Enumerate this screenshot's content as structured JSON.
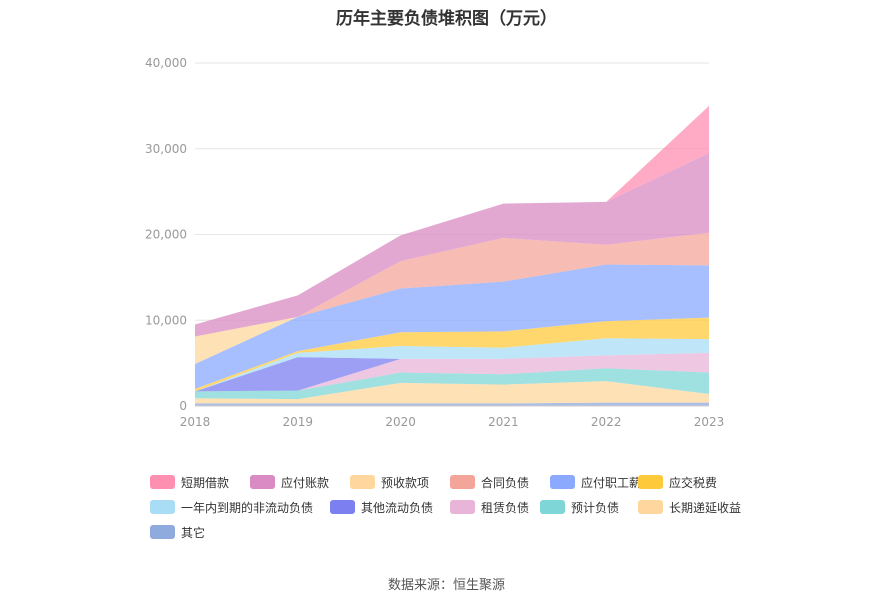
{
  "chart_data": {
    "type": "area",
    "stacked": true,
    "title": "历年主要负债堆积图（万元）",
    "x": [
      "2018",
      "2019",
      "2020",
      "2021",
      "2022",
      "2023"
    ],
    "ylim": [
      0,
      40000
    ],
    "yticks": [
      "0",
      "10,000",
      "20,000",
      "30,000",
      "40,000"
    ],
    "grid": true,
    "legend_position": "bottom",
    "series": [
      {
        "name": "其它",
        "color": "#8FAADC",
        "values": [
          300,
          300,
          300,
          300,
          400,
          400
        ]
      },
      {
        "name": "长期递延收益",
        "color": "#FFD79E",
        "values": [
          600,
          500,
          2400,
          2200,
          2500,
          1000
        ]
      },
      {
        "name": "预计负债",
        "color": "#7FD6D6",
        "values": [
          800,
          1000,
          1200,
          1200,
          1500,
          2500
        ]
      },
      {
        "name": "租赁负债",
        "color": "#E8B4D8",
        "values": [
          0,
          0,
          1600,
          1800,
          1500,
          2300
        ]
      },
      {
        "name": "其他流动负债",
        "color": "#7B7FEF",
        "values": [
          0,
          3900,
          0,
          0,
          0,
          0
        ]
      },
      {
        "name": "一年内到期的非流动负债",
        "color": "#A9DDF5",
        "values": [
          0,
          500,
          1500,
          1300,
          2000,
          1600
        ]
      },
      {
        "name": "应交税费",
        "color": "#FFC93C",
        "values": [
          300,
          200,
          1600,
          1900,
          2000,
          2500
        ]
      },
      {
        "name": "应付职工薪酬",
        "color": "#8AA9FF",
        "values": [
          2900,
          4000,
          5100,
          5800,
          6600,
          6100
        ]
      },
      {
        "name": "合同负债",
        "color": "#F4A59A",
        "values": [
          0,
          0,
          3200,
          5100,
          2300,
          3800
        ]
      },
      {
        "name": "预收款项",
        "color": "#FFD79E",
        "values": [
          3200,
          0,
          0,
          0,
          0,
          0
        ]
      },
      {
        "name": "应付账款",
        "color": "#DA8BC3",
        "values": [
          1400,
          2500,
          3000,
          4000,
          5000,
          9300
        ]
      },
      {
        "name": "短期借款",
        "color": "#FF8FB1",
        "values": [
          0,
          0,
          0,
          0,
          0,
          5500
        ]
      }
    ]
  },
  "legend": [
    {
      "label": "短期借款",
      "color": "#FF8FB1"
    },
    {
      "label": "应付账款",
      "color": "#DA8BC3"
    },
    {
      "label": "预收款项",
      "color": "#FFD79E"
    },
    {
      "label": "合同负债",
      "color": "#F4A59A"
    },
    {
      "label": "应付职工薪酬",
      "color": "#8AA9FF"
    },
    {
      "label": "应交税费",
      "color": "#FFC93C"
    },
    {
      "label": "一年内到期的非流动负债",
      "color": "#A9DDF5"
    },
    {
      "label": "其他流动负债",
      "color": "#7B7FEF"
    },
    {
      "label": "租赁负债",
      "color": "#E8B4D8"
    },
    {
      "label": "预计负债",
      "color": "#7FD6D6"
    },
    {
      "label": "长期递延收益",
      "color": "#FFD79E"
    },
    {
      "label": "其它",
      "color": "#8FAADC"
    }
  ],
  "source": "数据来源：恒生聚源"
}
